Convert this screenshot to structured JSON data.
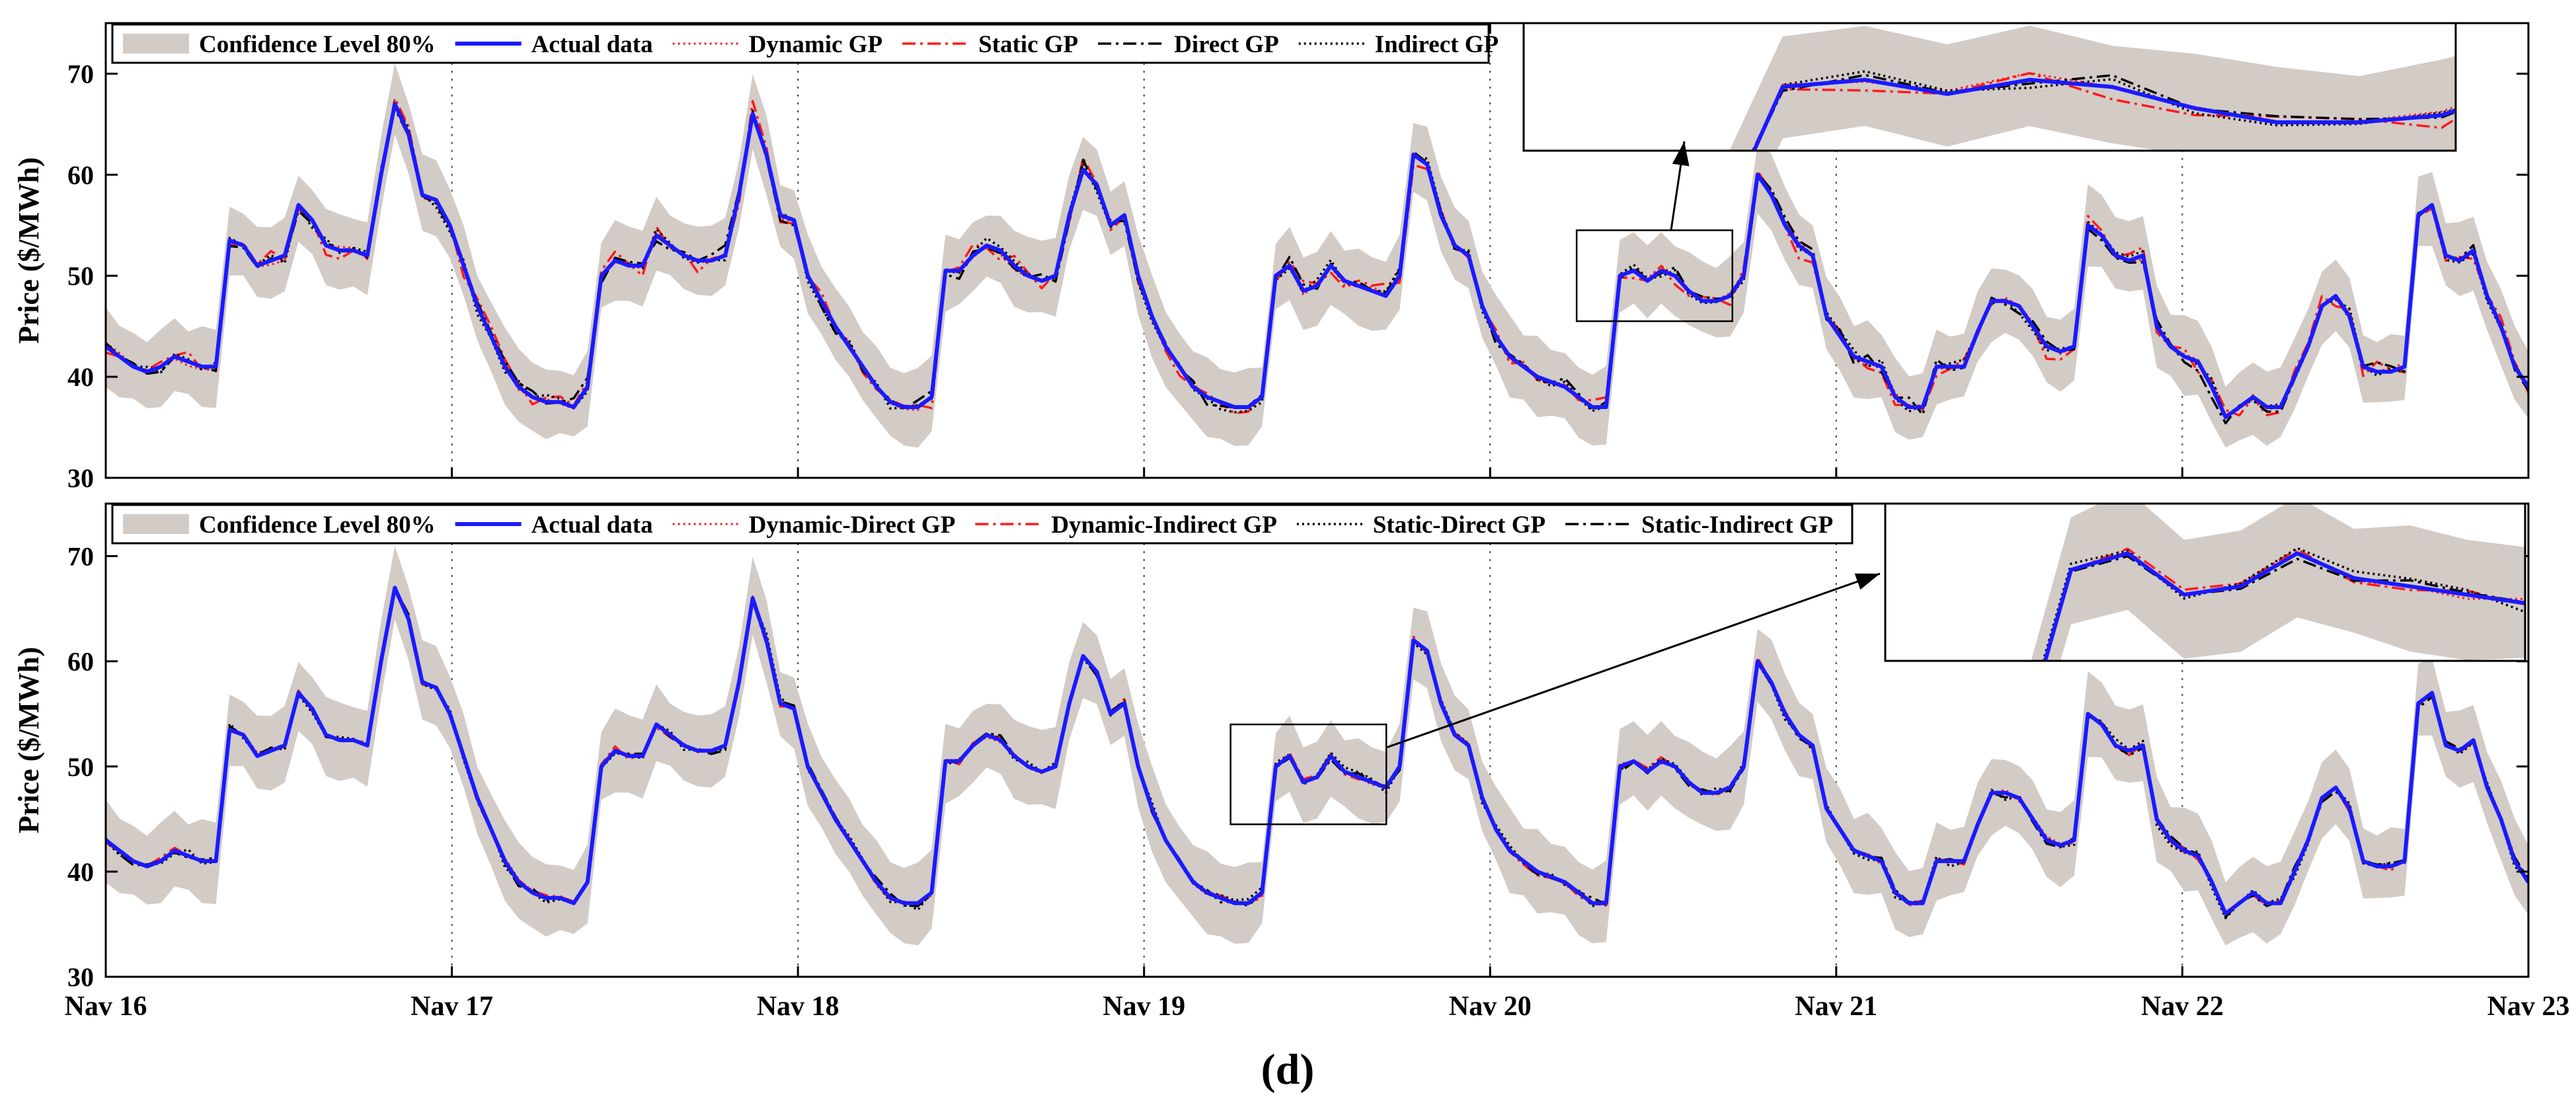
{
  "figure_label": "(d)",
  "colors": {
    "band": "#d2cbc6",
    "actual": "#1a1aff",
    "red": "#ff1a1a",
    "black": "#000000"
  },
  "chart_data": [
    {
      "type": "line",
      "panel": "top",
      "title": "",
      "xlabel": "",
      "ylabel": "Price ($/MWh)",
      "ylim": [
        30,
        75
      ],
      "yticks": [
        30,
        40,
        50,
        60,
        70
      ],
      "x_range_days": [
        0,
        7
      ],
      "xtick_labels": [
        "Nav 16",
        "Nav 17",
        "Nav 18",
        "Nav 19",
        "Nav 20",
        "Nav 21",
        "Nav 22",
        "Nav 23"
      ],
      "show_xtick_labels": false,
      "grid": "vertical dotted lines at day boundaries",
      "legend_position": "top-left",
      "legend": [
        "Confidence Level 80%",
        "Actual data",
        "Dynamic GP",
        "Static GP",
        "Direct GP",
        "Indirect GP"
      ],
      "band_label": "Confidence Level 80%",
      "band_halfwidth": 3.5,
      "series": [
        {
          "name": "Actual data",
          "color": "#1a1aff",
          "dash": "solid",
          "width": 6,
          "deviation": 0
        },
        {
          "name": "Dynamic GP",
          "color": "#ff1a1a",
          "dash": "dotted",
          "width": 3,
          "deviation": 0.5
        },
        {
          "name": "Static GP",
          "color": "#ff1a1a",
          "dash": "dashdot",
          "width": 3.5,
          "deviation": 1.4
        },
        {
          "name": "Direct GP",
          "color": "#000000",
          "dash": "dashdot",
          "width": 3.5,
          "deviation": 1.1
        },
        {
          "name": "Indirect GP",
          "color": "#000000",
          "dash": "dotted",
          "width": 3.5,
          "deviation": 0.9
        }
      ],
      "zoom_window": {
        "x": [
          4.25,
          4.7
        ],
        "y": [
          45.5,
          54.5
        ],
        "inset_position": "top-right"
      },
      "hourly_actual": [
        43,
        42,
        41,
        40.5,
        41,
        42,
        41.5,
        41,
        41,
        53.5,
        53,
        51,
        51.5,
        52,
        57,
        55.5,
        53,
        52.5,
        52.5,
        52,
        60,
        67,
        64,
        58,
        57.5,
        55,
        51,
        47,
        44,
        41,
        39,
        38,
        37.5,
        37.5,
        37,
        39,
        50,
        51.5,
        51,
        51,
        54,
        53,
        52,
        51.5,
        51.5,
        52,
        58,
        66,
        62,
        56,
        55.5,
        50,
        47.5,
        45,
        43,
        41,
        39,
        37.5,
        37,
        37,
        38,
        50.5,
        50.5,
        52,
        53,
        52.5,
        51,
        50,
        49.5,
        50,
        56,
        60.5,
        59,
        55,
        56,
        50,
        46,
        43,
        41,
        39,
        38,
        37.5,
        37,
        37,
        38,
        50,
        51,
        48.5,
        49,
        51,
        49.5,
        49,
        48.5,
        48,
        50,
        62,
        61,
        56,
        53,
        52,
        47,
        44,
        42,
        41,
        40,
        39.5,
        39,
        38,
        37,
        37,
        50,
        50.5,
        49.5,
        50.5,
        50,
        48.5,
        47.5,
        47.5,
        48,
        50,
        60,
        58,
        55,
        53,
        52,
        46,
        44,
        42,
        41.5,
        41,
        38,
        37,
        37,
        41,
        41,
        41,
        44.5,
        47.5,
        47.5,
        47,
        45,
        43,
        42.5,
        43,
        55,
        54,
        52,
        51.5,
        52,
        45,
        43,
        42,
        41.5,
        39,
        36,
        37,
        38,
        37,
        37,
        40,
        43,
        47,
        48,
        46,
        41,
        40.5,
        40.5,
        41,
        56,
        57,
        52,
        51.5,
        52.5,
        48,
        45,
        41,
        39
      ]
    },
    {
      "type": "line",
      "panel": "bottom",
      "title": "",
      "xlabel": "",
      "ylabel": "Price ($/MWh)",
      "ylim": [
        30,
        75
      ],
      "yticks": [
        30,
        40,
        50,
        60,
        70
      ],
      "x_range_days": [
        0,
        7
      ],
      "xtick_labels": [
        "Nav 16",
        "Nav 17",
        "Nav 18",
        "Nav 19",
        "Nav 20",
        "Nav 21",
        "Nav 22",
        "Nav 23"
      ],
      "show_xtick_labels": true,
      "grid": "vertical dotted lines at day boundaries",
      "legend_position": "top-left",
      "legend": [
        "Confidence Level 80%",
        "Actual data",
        "Dynamic-Direct GP",
        "Dynamic-Indirect GP",
        "Static-Direct GP",
        "Static-Indirect GP"
      ],
      "band_label": "Confidence Level 80%",
      "band_halfwidth": 3.5,
      "series": [
        {
          "name": "Actual data",
          "color": "#1a1aff",
          "dash": "solid",
          "width": 6,
          "deviation": 0
        },
        {
          "name": "Dynamic-Direct GP",
          "color": "#ff1a1a",
          "dash": "dotted",
          "width": 3,
          "deviation": 0.35
        },
        {
          "name": "Dynamic-Indirect GP",
          "color": "#ff1a1a",
          "dash": "dashdot",
          "width": 3.5,
          "deviation": 0.45
        },
        {
          "name": "Static-Direct GP",
          "color": "#000000",
          "dash": "dotted",
          "width": 3.5,
          "deviation": 0.7
        },
        {
          "name": "Static-Indirect GP",
          "color": "#000000",
          "dash": "dashdot",
          "width": 3.5,
          "deviation": 0.55
        }
      ],
      "zoom_window": {
        "x": [
          3.25,
          3.7
        ],
        "y": [
          44.5,
          54
        ],
        "inset_position": "top-right"
      },
      "hourly_actual": [
        43,
        42,
        41,
        40.5,
        41,
        42,
        41.5,
        41,
        41,
        53.5,
        53,
        51,
        51.5,
        52,
        57,
        55.5,
        53,
        52.5,
        52.5,
        52,
        60,
        67,
        64,
        58,
        57.5,
        55,
        51,
        47,
        44,
        41,
        39,
        38,
        37.5,
        37.5,
        37,
        39,
        50,
        51.5,
        51,
        51,
        54,
        53,
        52,
        51.5,
        51.5,
        52,
        58,
        66,
        62,
        56,
        55.5,
        50,
        47.5,
        45,
        43,
        41,
        39,
        37.5,
        37,
        37,
        38,
        50.5,
        50.5,
        52,
        53,
        52.5,
        51,
        50,
        49.5,
        50,
        56,
        60.5,
        59,
        55,
        56,
        50,
        46,
        43,
        41,
        39,
        38,
        37.5,
        37,
        37,
        38,
        50,
        51,
        48.5,
        49,
        51,
        49.5,
        49,
        48.5,
        48,
        50,
        62,
        61,
        56,
        53,
        52,
        47,
        44,
        42,
        41,
        40,
        39.5,
        39,
        38,
        37,
        37,
        50,
        50.5,
        49.5,
        50.5,
        50,
        48.5,
        47.5,
        47.5,
        48,
        50,
        60,
        58,
        55,
        53,
        52,
        46,
        44,
        42,
        41.5,
        41,
        38,
        37,
        37,
        41,
        41,
        41,
        44.5,
        47.5,
        47.5,
        47,
        45,
        43,
        42.5,
        43,
        55,
        54,
        52,
        51.5,
        52,
        45,
        43,
        42,
        41.5,
        39,
        36,
        37,
        38,
        37,
        37,
        40,
        43,
        47,
        48,
        46,
        41,
        40.5,
        40.5,
        41,
        56,
        57,
        52,
        51.5,
        52.5,
        48,
        45,
        41,
        39
      ]
    }
  ]
}
